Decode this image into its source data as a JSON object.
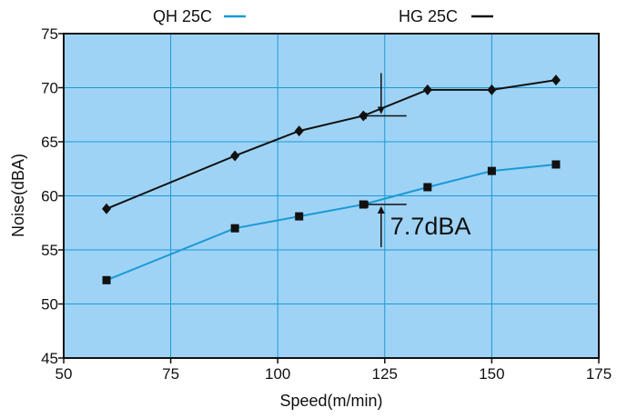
{
  "chart_data": {
    "type": "line",
    "title": "",
    "xlabel": "Speed(m/min)",
    "ylabel": "Noise(dBA)",
    "xlim": [
      50,
      175
    ],
    "ylim": [
      45,
      75
    ],
    "xticks": [
      50,
      75,
      100,
      125,
      150,
      175
    ],
    "yticks": [
      45,
      50,
      55,
      60,
      65,
      70,
      75
    ],
    "grid": true,
    "plot_background": "#9fd3f5",
    "grid_color": "#1a9ad6",
    "legend_placement": "top",
    "series": [
      {
        "name": "QH 25C",
        "legend_color": "#1a9ad6",
        "line_color": "#1a9ad6",
        "marker": "square",
        "x": [
          60,
          90,
          105,
          120,
          135,
          150,
          165
        ],
        "y": [
          52.2,
          57.0,
          58.1,
          59.2,
          60.8,
          62.3,
          62.9
        ]
      },
      {
        "name": "HG 25C",
        "legend_color": "#111111",
        "line_color": "#111111",
        "marker": "diamond",
        "x": [
          60,
          90,
          105,
          120,
          135,
          150,
          165
        ],
        "y": [
          58.8,
          63.7,
          66.0,
          67.4,
          69.8,
          69.8,
          70.7
        ]
      }
    ],
    "annotations": [
      {
        "text": "7.7dBA",
        "x": 125,
        "y_from": 59.2,
        "y_to": 67.4
      }
    ]
  }
}
